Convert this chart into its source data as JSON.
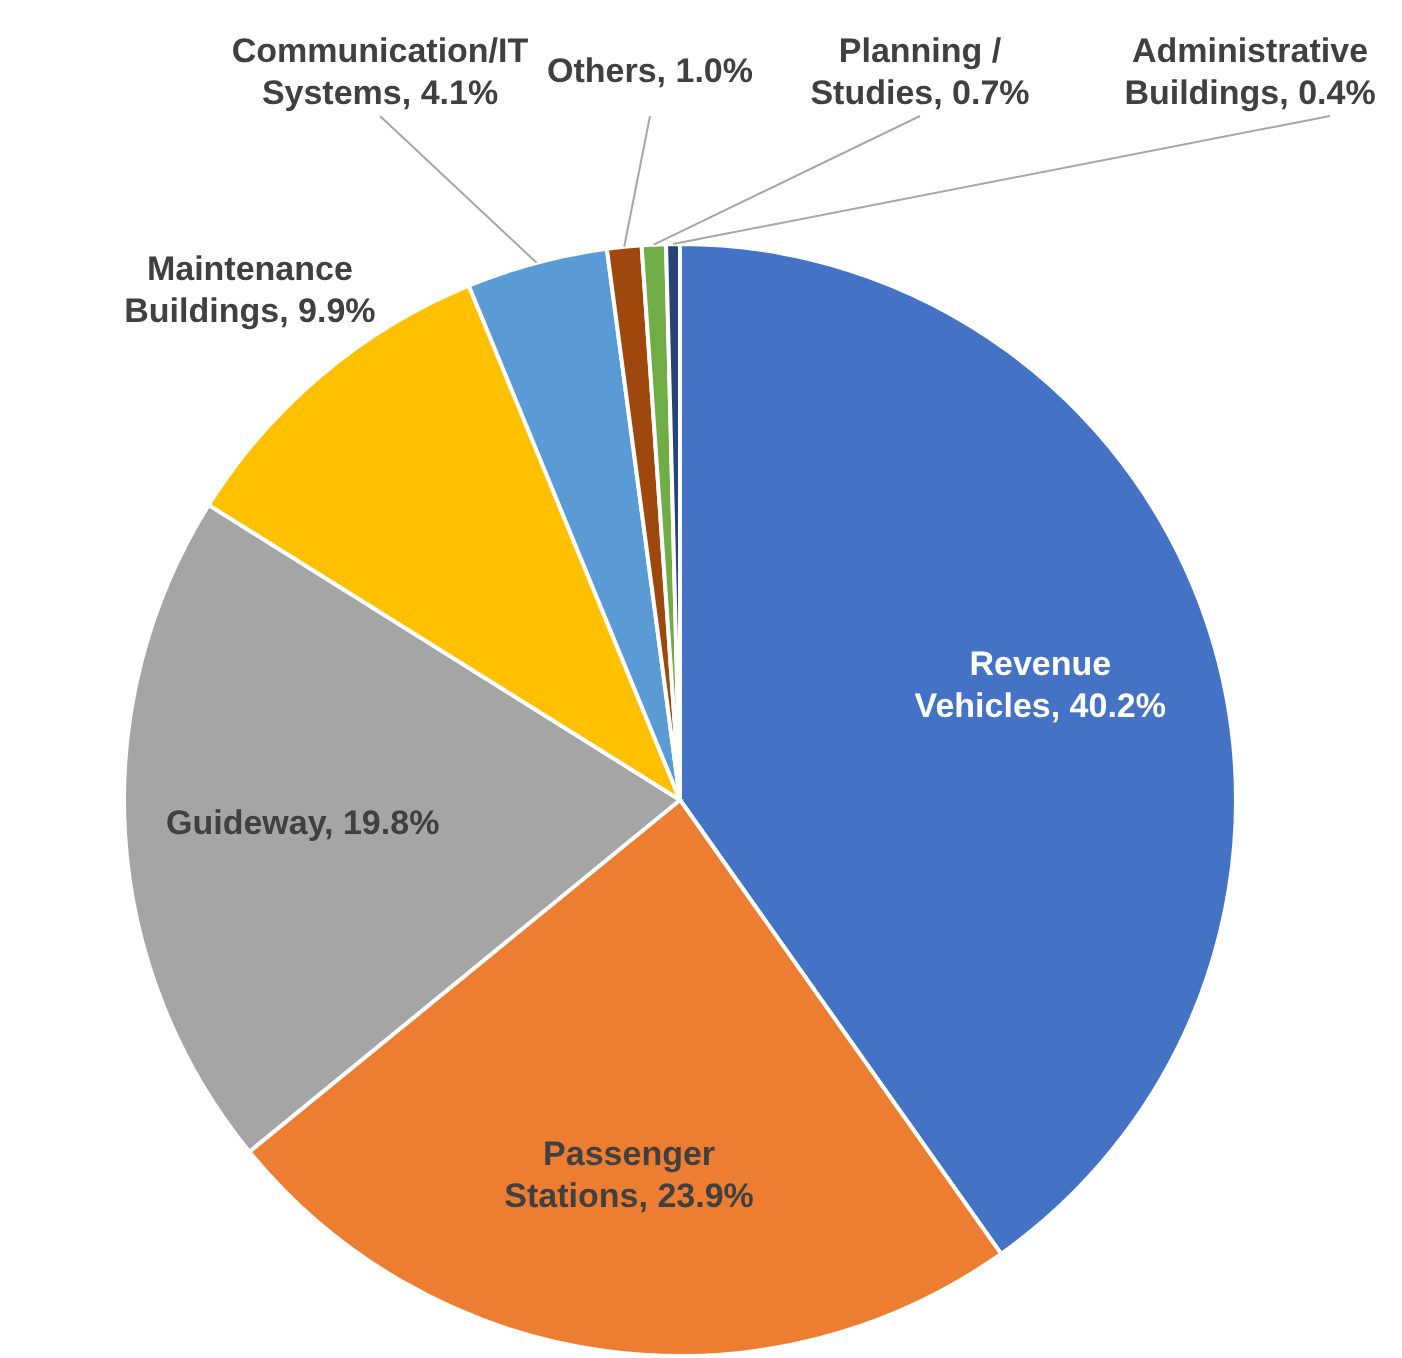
{
  "chart_data": {
    "type": "pie",
    "categories": [
      "Revenue Vehicles",
      "Passenger Stations",
      "Guideway",
      "Maintenance Buildings",
      "Communication/IT Systems",
      "Others",
      "Planning / Studies",
      "Administrative Buildings"
    ],
    "value_labels": [
      "40.2%",
      "23.9%",
      "19.8%",
      "9.9%",
      "4.1%",
      "1.0%",
      "0.7%",
      "0.4%"
    ],
    "values": [
      40.2,
      23.9,
      19.8,
      9.9,
      4.1,
      1.0,
      0.7,
      0.4
    ],
    "colors": [
      "#4472c4",
      "#ed7d31",
      "#a5a5a5",
      "#ffc000",
      "#5b9bd5",
      "#9e480e",
      "#70ad47",
      "#264478"
    ],
    "data_labels": false
  }
}
